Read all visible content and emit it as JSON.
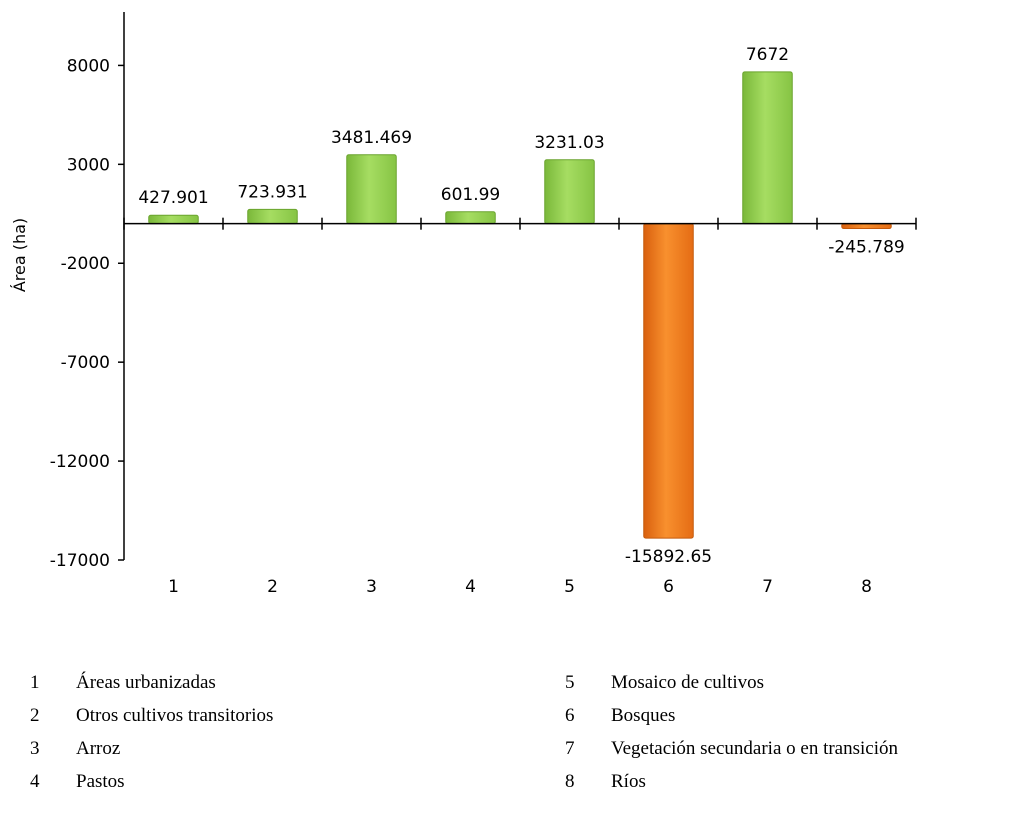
{
  "chart_data": {
    "type": "bar",
    "categories": [
      "1",
      "2",
      "3",
      "4",
      "5",
      "6",
      "7",
      "8"
    ],
    "values": [
      427.901,
      723.931,
      3481.469,
      601.99,
      3231.03,
      -15892.65,
      7672,
      -245.789
    ],
    "data_labels": [
      "427.901",
      "723.931",
      "3481.469",
      "601.99",
      "3231.03",
      "-15892.65",
      "7672",
      "-245.789"
    ],
    "ylabel": "Área (ha)",
    "xlabel": "",
    "ylim": [
      -17000,
      10700
    ],
    "yticks": [
      8000,
      3000,
      -2000,
      -7000,
      -12000,
      -17000
    ],
    "ytick_labels": [
      "8000",
      "3000",
      "-2000",
      "-7000",
      "-12000",
      "-17000"
    ],
    "grid": false,
    "colors": {
      "positive": "#92d050",
      "negative": "#f07a1a"
    }
  },
  "legend": [
    {
      "num": "1",
      "name": "Áreas urbanizadas"
    },
    {
      "num": "2",
      "name": "Otros cultivos transitorios"
    },
    {
      "num": "3",
      "name": "Arroz"
    },
    {
      "num": "4",
      "name": "Pastos"
    },
    {
      "num": "5",
      "name": "Mosaico de cultivos"
    },
    {
      "num": "6",
      "name": "Bosques"
    },
    {
      "num": "7",
      "name": "Vegetación secundaria o en transición"
    },
    {
      "num": "8",
      "name": "Ríos"
    }
  ]
}
